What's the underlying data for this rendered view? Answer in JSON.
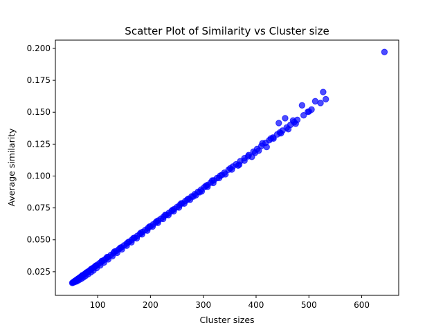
{
  "chart_data": {
    "type": "scatter",
    "title": "Scatter Plot of Similarity vs Cluster size",
    "xlabel": "Cluster sizes",
    "ylabel": "Average similarity",
    "xlim": [
      20,
      670
    ],
    "ylim": [
      0.0065,
      0.2065
    ],
    "xticks": [
      100,
      200,
      300,
      400,
      500,
      600
    ],
    "yticks": [
      0.025,
      0.05,
      0.075,
      0.1,
      0.125,
      0.15,
      0.175,
      0.2
    ],
    "ytick_labels": [
      "0.025",
      "0.050",
      "0.075",
      "0.100",
      "0.125",
      "0.150",
      "0.175",
      "0.200"
    ],
    "grid": false,
    "marker_color": "#0000ff",
    "series": [
      {
        "x": [
          52,
          53,
          54,
          55,
          56,
          57,
          58,
          59,
          60,
          62,
          64,
          66,
          68,
          70,
          72,
          75,
          78,
          80,
          83,
          86,
          90,
          93,
          96,
          100,
          104,
          108,
          112,
          116,
          120,
          125,
          130,
          135,
          140,
          145,
          150,
          155,
          160,
          165,
          170,
          175,
          180,
          185,
          190,
          195,
          200,
          205,
          210,
          215,
          220,
          225,
          230,
          235,
          240,
          245,
          250,
          255,
          260,
          266,
          272,
          278,
          284,
          290,
          296,
          302,
          308,
          314,
          320,
          326,
          332,
          340,
          348,
          356,
          362,
          370,
          378,
          386,
          395,
          402,
          410,
          418,
          425,
          432,
          440,
          445,
          450,
          458,
          465,
          472,
          478,
          490,
          500,
          505,
          522,
          532,
          643
        ],
        "y": [
          0.0162,
          0.0165,
          0.0168,
          0.0171,
          0.0174,
          0.0177,
          0.018,
          0.0183,
          0.0186,
          0.0192,
          0.0198,
          0.0204,
          0.021,
          0.0216,
          0.0222,
          0.0231,
          0.024,
          0.0246,
          0.0255,
          0.0264,
          0.0276,
          0.0285,
          0.0294,
          0.0306,
          0.0318,
          0.033,
          0.0342,
          0.0354,
          0.0366,
          0.0381,
          0.0396,
          0.0411,
          0.0426,
          0.0441,
          0.0456,
          0.0471,
          0.0486,
          0.0501,
          0.0516,
          0.0531,
          0.0546,
          0.0561,
          0.0576,
          0.0591,
          0.0606,
          0.0621,
          0.0636,
          0.0651,
          0.0666,
          0.0681,
          0.0696,
          0.0711,
          0.0726,
          0.0741,
          0.0756,
          0.0771,
          0.0786,
          0.0804,
          0.0822,
          0.084,
          0.0858,
          0.0876,
          0.0894,
          0.0912,
          0.093,
          0.0948,
          0.0966,
          0.0984,
          0.1002,
          0.1026,
          0.105,
          0.1074,
          0.1092,
          0.1116,
          0.114,
          0.1164,
          0.1191,
          0.1212,
          0.1236,
          0.126,
          0.1281,
          0.1302,
          0.1326,
          0.1341,
          0.1356,
          0.138,
          0.1401,
          0.1422,
          0.144,
          0.1476,
          0.1506,
          0.1521,
          0.1572,
          0.1602,
          0.1972
        ]
      },
      {
        "x": [
          55,
          58,
          61,
          65,
          69,
          73,
          77,
          82,
          87,
          92,
          98,
          105,
          112,
          120,
          128,
          137,
          146,
          155,
          164,
          174,
          184,
          194,
          204,
          214,
          224,
          234,
          244,
          254,
          264,
          275,
          286,
          297,
          308,
          319,
          330,
          342,
          354,
          366,
          378,
          392,
          405,
          420,
          433,
          447,
          461,
          475
        ],
        "y": [
          0.0168,
          0.0172,
          0.0176,
          0.0186,
          0.0195,
          0.0206,
          0.0217,
          0.0231,
          0.0245,
          0.026,
          0.0279,
          0.03,
          0.0322,
          0.0347,
          0.0372,
          0.0399,
          0.0426,
          0.0454,
          0.0481,
          0.0512,
          0.0543,
          0.0573,
          0.0604,
          0.0633,
          0.0664,
          0.0694,
          0.0724,
          0.0754,
          0.0784,
          0.0815,
          0.0849,
          0.088,
          0.0916,
          0.0946,
          0.0985,
          0.1014,
          0.1051,
          0.1082,
          0.1121,
          0.115,
          0.1199,
          0.1227,
          0.1294,
          0.1335,
          0.1367,
          0.141
        ]
      },
      {
        "x": [
          57,
          63,
          71,
          79,
          88,
          97,
          108,
          118,
          132,
          143,
          158,
          168,
          182,
          198,
          212,
          228,
          242,
          258,
          270,
          281,
          293,
          305,
          317,
          335,
          351,
          368,
          385,
          398,
          412,
          428,
          443,
          455,
          470,
          487,
          498,
          512,
          527
        ],
        "y": [
          0.0178,
          0.0195,
          0.0222,
          0.0244,
          0.0272,
          0.0298,
          0.0334,
          0.0365,
          0.0408,
          0.0438,
          0.0482,
          0.0514,
          0.0556,
          0.0603,
          0.0645,
          0.0695,
          0.0734,
          0.0785,
          0.0816,
          0.0839,
          0.0873,
          0.0923,
          0.0965,
          0.1008,
          0.106,
          0.1089,
          0.1154,
          0.1182,
          0.1256,
          0.1294,
          0.1415,
          0.1453,
          0.1435,
          0.1554,
          0.1503,
          0.1586,
          0.1658
        ]
      }
    ]
  }
}
